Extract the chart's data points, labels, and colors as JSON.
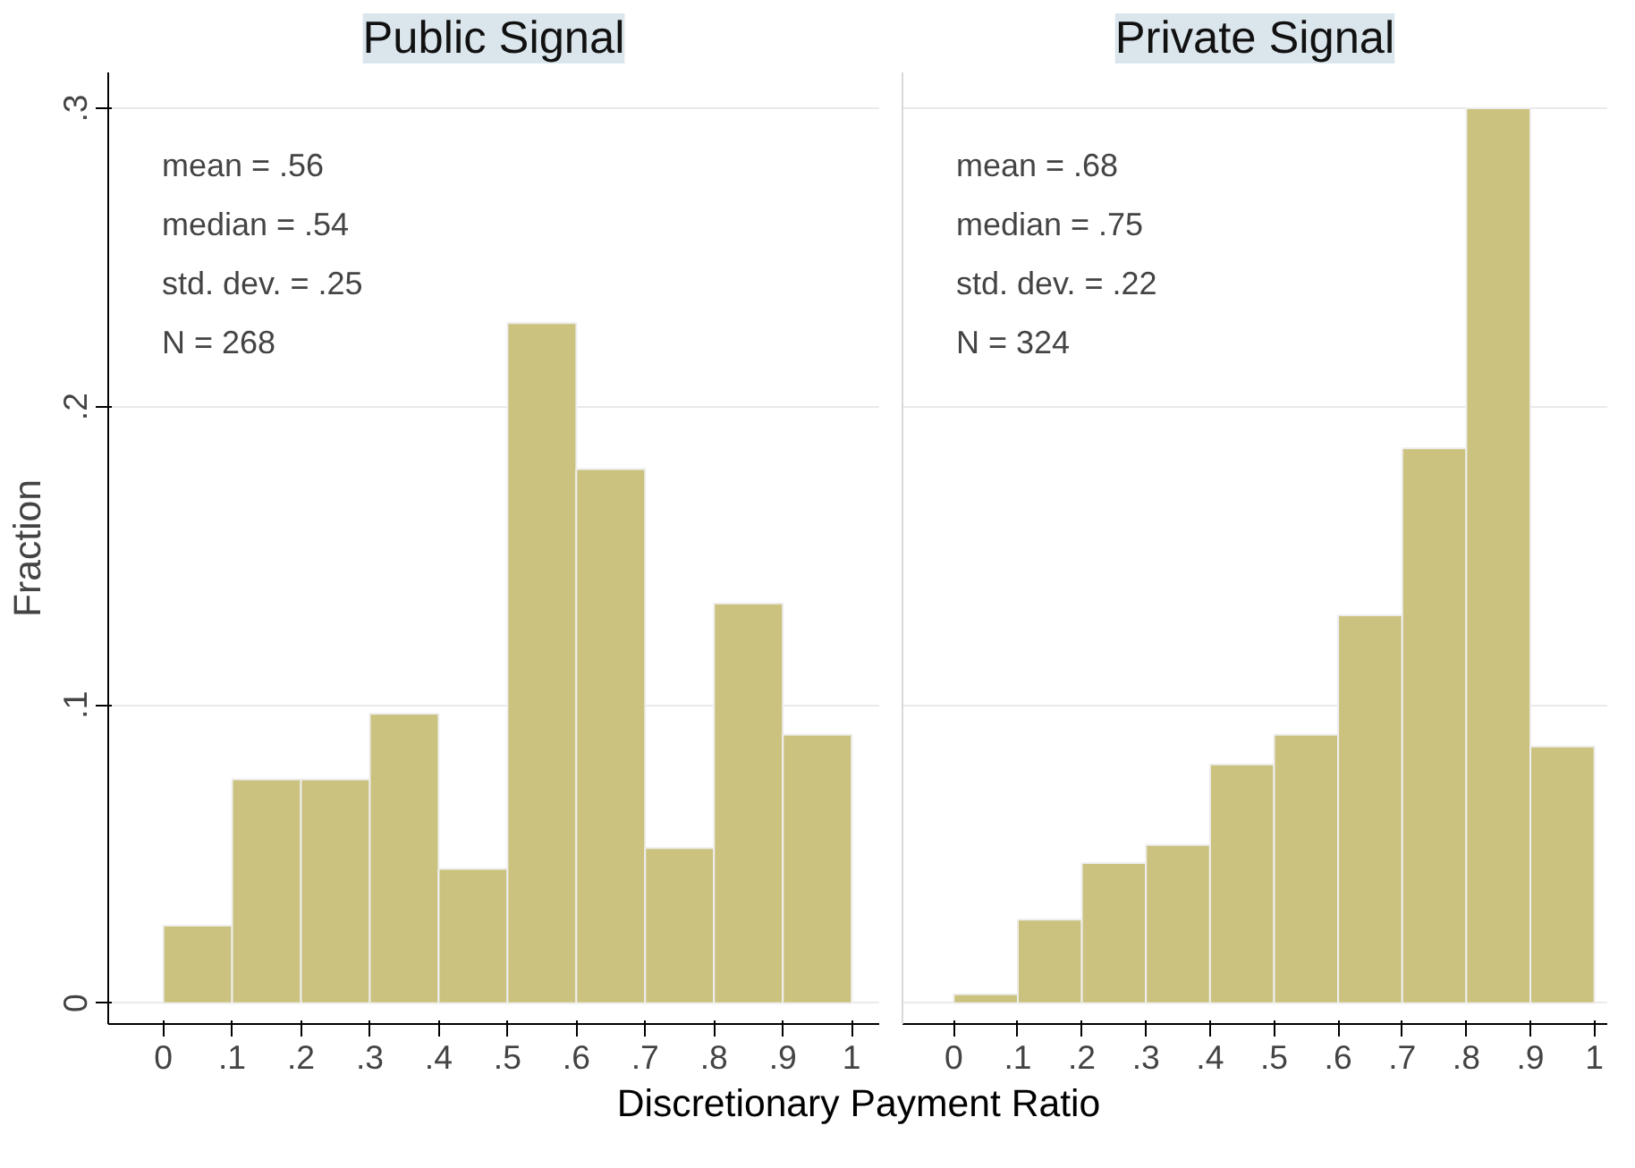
{
  "chart_data": [
    {
      "type": "histogram",
      "title": "Public Signal",
      "ylabel": "Fraction",
      "xlabel": "Discretionary Payment Ratio",
      "color": "#cbc27f",
      "bins": [
        0,
        0.1,
        0.2,
        0.3,
        0.4,
        0.5,
        0.6,
        0.7,
        0.8,
        0.9,
        1
      ],
      "values": [
        0.026,
        0.075,
        0.075,
        0.097,
        0.045,
        0.228,
        0.179,
        0.052,
        0.134,
        0.09
      ],
      "xlim": [
        -0.08,
        1.04
      ],
      "ylim": [
        -0.007,
        0.312
      ],
      "xticks": [
        0,
        {
          "value": 0.1,
          "label": ".1"
        },
        {
          "value": 0.2,
          "label": ".2"
        },
        {
          "value": 0.3,
          "label": ".3"
        },
        {
          "value": 0.4,
          "label": ".4"
        },
        {
          "value": 0.5,
          "label": ".5"
        },
        {
          "value": 0.6,
          "label": ".6"
        },
        {
          "value": 0.7,
          "label": ".7"
        },
        {
          "value": 0.8,
          "label": ".8"
        },
        {
          "value": 0.9,
          "label": ".9"
        },
        1
      ],
      "yticks": [
        0,
        {
          "value": 0.1,
          "label": ".1"
        },
        {
          "value": 0.2,
          "label": ".2"
        },
        {
          "value": 0.3,
          "label": ".3"
        }
      ],
      "grid": "y",
      "annotations": [
        "mean = .56",
        "median = .54",
        "std. dev. = .25",
        "N = 268"
      ]
    },
    {
      "type": "histogram",
      "title": "Private Signal",
      "color": "#cbc27f",
      "bins": [
        0,
        0.1,
        0.2,
        0.3,
        0.4,
        0.5,
        0.6,
        0.7,
        0.8,
        0.9,
        1
      ],
      "values": [
        0.003,
        0.028,
        0.047,
        0.053,
        0.08,
        0.09,
        0.13,
        0.186,
        0.3,
        0.086
      ],
      "xlim": [
        -0.08,
        1.02
      ],
      "ylim": [
        -0.007,
        0.312
      ],
      "xticks": [
        0,
        {
          "value": 0.1,
          "label": ".1"
        },
        {
          "value": 0.2,
          "label": ".2"
        },
        {
          "value": 0.3,
          "label": ".3"
        },
        {
          "value": 0.4,
          "label": ".4"
        },
        {
          "value": 0.5,
          "label": ".5"
        },
        {
          "value": 0.6,
          "label": ".6"
        },
        {
          "value": 0.7,
          "label": ".7"
        },
        {
          "value": 0.8,
          "label": ".8"
        },
        {
          "value": 0.9,
          "label": ".9"
        },
        1
      ],
      "yticks": [
        0,
        0.1,
        0.2,
        0.3
      ],
      "grid": "y",
      "tick_labels": "x",
      "annotations": [
        "mean = .68",
        "median = .75",
        "std. dev. = .22",
        "N = 324"
      ]
    }
  ]
}
